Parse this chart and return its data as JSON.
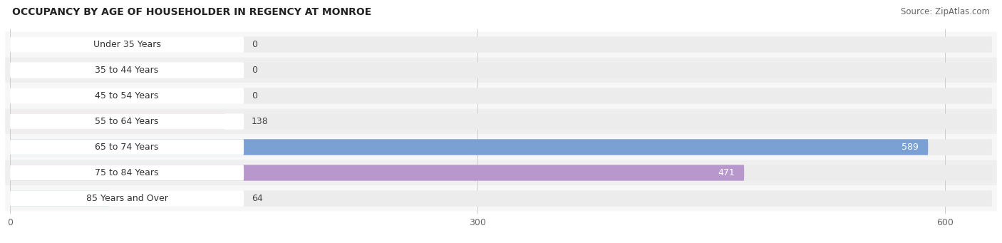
{
  "title": "OCCUPANCY BY AGE OF HOUSEHOLDER IN REGENCY AT MONROE",
  "source": "Source: ZipAtlas.com",
  "categories": [
    "Under 35 Years",
    "35 to 44 Years",
    "45 to 54 Years",
    "55 to 64 Years",
    "65 to 74 Years",
    "75 to 84 Years",
    "85 Years and Over"
  ],
  "values": [
    0,
    0,
    0,
    138,
    589,
    471,
    64
  ],
  "bar_colors": [
    "#b0b0e0",
    "#f0a0b0",
    "#f5c890",
    "#e8a8a8",
    "#7ba0d4",
    "#b898cc",
    "#7ec8c0"
  ],
  "bar_bg_color": "#ececec",
  "label_bg_color": "#ffffff",
  "xlim_max": 630,
  "xticks": [
    0,
    300,
    600
  ],
  "title_fontsize": 10,
  "source_fontsize": 8.5,
  "label_fontsize": 9,
  "value_fontsize": 9,
  "background_color": "#ffffff",
  "bar_height": 0.62,
  "row_colors": [
    "#f7f7f7",
    "#efefef"
  ]
}
